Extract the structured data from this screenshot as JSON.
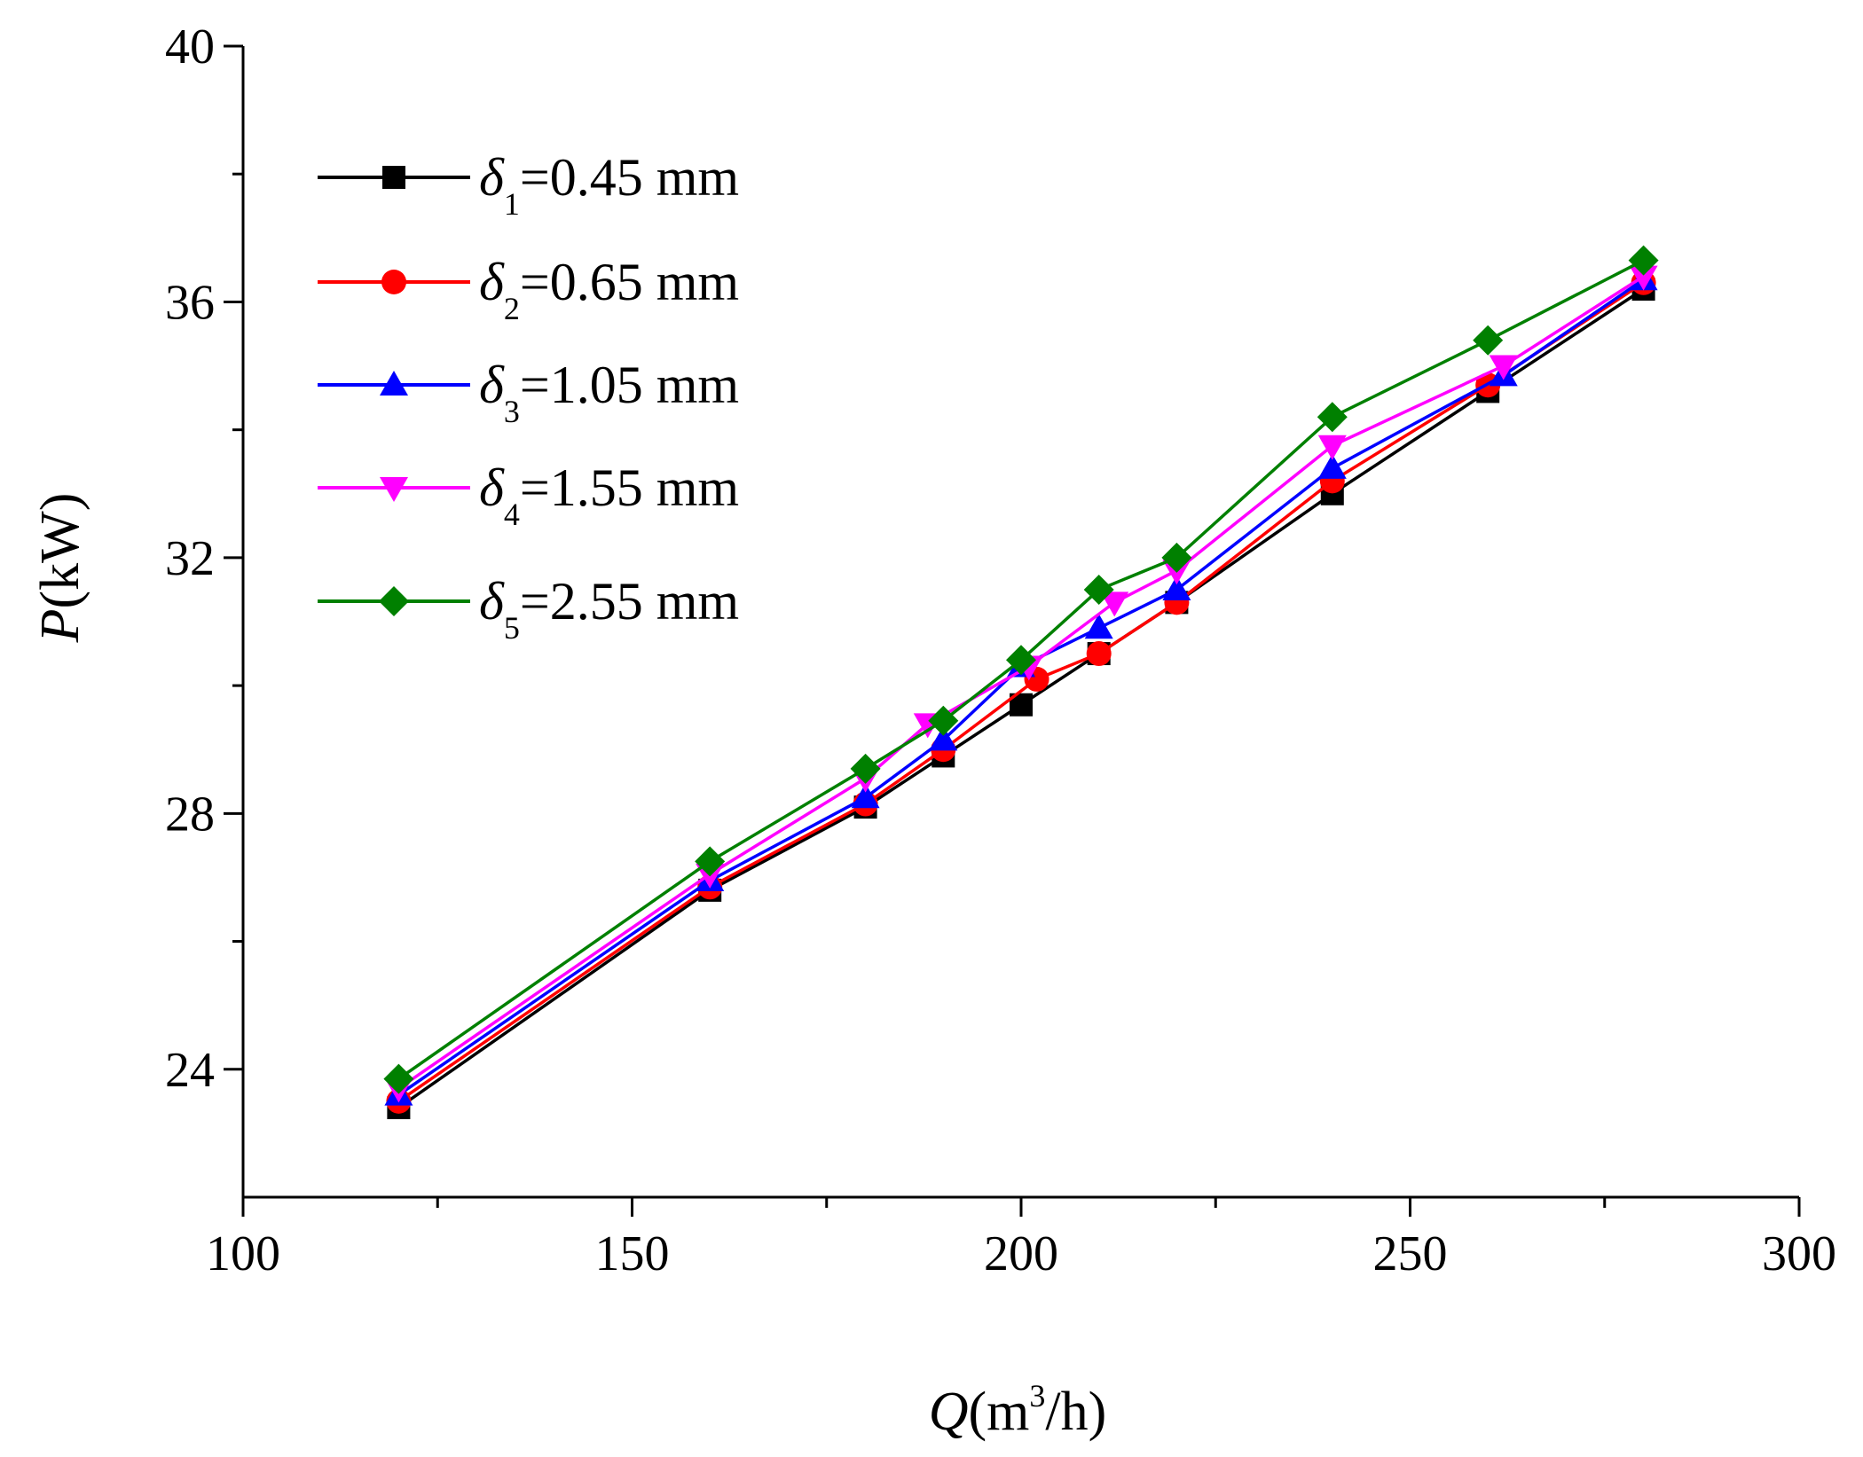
{
  "chart_data": {
    "type": "line",
    "title": "",
    "xlabel": {
      "symbol": "Q",
      "unit_open": "(",
      "unit_base": "m",
      "unit_sup": "3",
      "unit_rest": "/h",
      "unit_close": ")"
    },
    "ylabel": {
      "symbol": "P",
      "unit": "(kW)"
    },
    "xlim": [
      100,
      300
    ],
    "ylim": [
      22,
      40
    ],
    "xticks": [
      100,
      150,
      200,
      250,
      300
    ],
    "xminor": [
      125,
      175,
      225,
      275
    ],
    "yticks": [
      24,
      28,
      32,
      36,
      40
    ],
    "yminor": [
      26,
      30,
      34,
      38
    ],
    "legend_position": "top-left",
    "series": [
      {
        "name": "δ1=0.45 mm",
        "symbol": "δ",
        "sub": "1",
        "value_text": "=0.45 mm",
        "color": "#000000",
        "marker": "square",
        "x": [
          120,
          160,
          180,
          190,
          200,
          210,
          220,
          240,
          260,
          280
        ],
        "y": [
          23.4,
          26.8,
          28.1,
          28.9,
          29.7,
          30.5,
          31.3,
          33.0,
          34.6,
          36.2
        ]
      },
      {
        "name": "δ2=0.65 mm",
        "symbol": "δ",
        "sub": "2",
        "value_text": "=0.65 mm",
        "color": "#ff0000",
        "marker": "circle",
        "x": [
          120,
          160,
          180,
          190,
          202,
          210,
          220,
          240,
          260,
          280
        ],
        "y": [
          23.5,
          26.85,
          28.15,
          29.0,
          30.1,
          30.5,
          31.3,
          33.2,
          34.7,
          36.3
        ]
      },
      {
        "name": "δ3=1.05 mm",
        "symbol": "δ",
        "sub": "3",
        "value_text": "=1.05 mm",
        "color": "#0000ff",
        "marker": "triangle-up",
        "x": [
          120,
          160,
          180,
          190,
          200,
          210,
          220,
          240,
          262,
          280
        ],
        "y": [
          23.6,
          26.95,
          28.25,
          29.15,
          30.3,
          30.9,
          31.5,
          33.4,
          34.85,
          36.35
        ]
      },
      {
        "name": "δ4=1.55 mm",
        "symbol": "δ",
        "sub": "4",
        "value_text": "=1.55 mm",
        "color": "#ff00ff",
        "marker": "triangle-down",
        "x": [
          120,
          160,
          180,
          188,
          201,
          212,
          220,
          240,
          262,
          280
        ],
        "y": [
          23.7,
          27.05,
          28.55,
          29.4,
          30.3,
          31.3,
          31.8,
          33.75,
          35.0,
          36.4
        ]
      },
      {
        "name": "δ5=2.55 mm",
        "symbol": "δ",
        "sub": "5",
        "value_text": "=2.55 mm",
        "color": "#008000",
        "marker": "diamond",
        "x": [
          120,
          160,
          180,
          190,
          200,
          210,
          220,
          240,
          260,
          280
        ],
        "y": [
          23.85,
          27.25,
          28.7,
          29.45,
          30.4,
          31.5,
          32.0,
          34.2,
          35.4,
          36.65
        ]
      }
    ]
  }
}
